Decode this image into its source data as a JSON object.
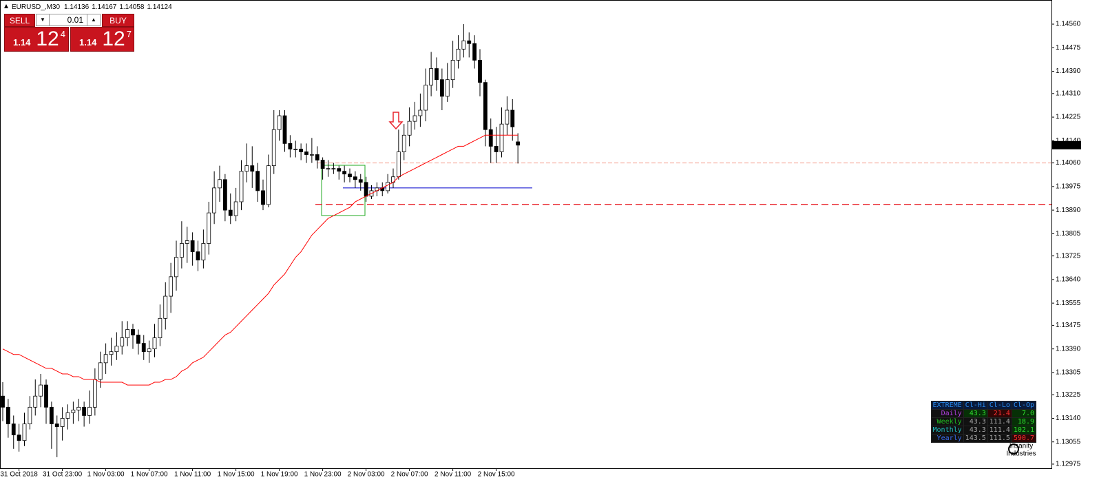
{
  "chart_data": {
    "type": "candlestick",
    "symbol": "EURUSD_,M30",
    "categories": [
      null,
      null,
      null,
      "31 Oct 2018",
      null,
      null,
      null,
      null,
      null,
      null,
      null,
      "31 Oct 23:00",
      null,
      null,
      null,
      null,
      null,
      null,
      null,
      "1 Nov 03:00",
      null,
      null,
      null,
      null,
      null,
      null,
      null,
      "1 Nov 07:00",
      null,
      null,
      null,
      null,
      null,
      null,
      null,
      "1 Nov 11:00",
      null,
      null,
      null,
      null,
      null,
      null,
      null,
      "1 Nov 15:00",
      null,
      null,
      null,
      null,
      null,
      null,
      null,
      "1 Nov 19:00",
      null,
      null,
      null,
      null,
      null,
      null,
      null,
      "1 Nov 23:00",
      null,
      null,
      null,
      null,
      null,
      null,
      null,
      "2 Nov 03:00",
      null,
      null,
      null,
      null,
      null,
      null,
      null,
      "2 Nov 07:00",
      null,
      null,
      null,
      null,
      null,
      null,
      null,
      "2 Nov 11:00",
      null,
      null,
      null,
      null,
      null,
      null,
      null,
      "2 Nov 15:00",
      null,
      null,
      null,
      null
    ],
    "open": [
      1.1322,
      1.1318,
      1.1312,
      1.1308,
      1.1306,
      1.1312,
      1.1318,
      1.1322,
      1.1326,
      1.1318,
      1.1312,
      1.1311,
      1.1314,
      1.1316,
      1.1317,
      1.1318,
      1.1315,
      1.1318,
      1.1328,
      1.1334,
      1.1337,
      1.1338,
      1.134,
      1.1343,
      1.1346,
      1.1344,
      1.1341,
      1.1338,
      1.1339,
      1.1343,
      1.135,
      1.1358,
      1.1365,
      1.1372,
      1.1377,
      1.1378,
      1.1374,
      1.1371,
      1.1377,
      1.1388,
      1.1397,
      1.14,
      1.1389,
      1.1387,
      1.1392,
      1.1403,
      1.1405,
      1.1403,
      1.1396,
      1.1391,
      1.1405,
      1.1418,
      1.1423,
      1.1413,
      1.1411,
      1.1411,
      1.141,
      1.1409,
      1.1409,
      1.1407,
      1.1404,
      1.1404,
      1.1404,
      1.1403,
      1.1402,
      1.1401,
      1.14,
      1.1399,
      1.1394,
      1.1396,
      1.1397,
      1.1396,
      1.1399,
      1.1401,
      1.141,
      1.1416,
      1.1421,
      1.1423,
      1.1425,
      1.1434,
      1.144,
      1.1436,
      1.143,
      1.1436,
      1.1443,
      1.1447,
      1.145,
      1.1449,
      1.1443,
      1.1435,
      1.1418,
      1.1412,
      1.141,
      1.142,
      1.1425,
      1.14136
    ],
    "high": [
      1.1327,
      1.1321,
      1.1315,
      1.1312,
      1.1316,
      1.1322,
      1.1328,
      1.133,
      1.1328,
      1.132,
      1.1315,
      1.1318,
      1.1319,
      1.132,
      1.1321,
      1.132,
      1.1324,
      1.1332,
      1.1338,
      1.1341,
      1.1343,
      1.1345,
      1.1349,
      1.1349,
      1.1348,
      1.1346,
      1.1344,
      1.1342,
      1.1348,
      1.1355,
      1.1363,
      1.137,
      1.1378,
      1.1385,
      1.1383,
      1.1381,
      1.1378,
      1.1382,
      1.1392,
      1.1403,
      1.1405,
      1.1402,
      1.1395,
      1.1397,
      1.1407,
      1.1413,
      1.1412,
      1.1406,
      1.14,
      1.1409,
      1.1425,
      1.1425,
      1.1425,
      1.1416,
      1.1414,
      1.1413,
      1.1413,
      1.1415,
      1.1412,
      1.1408,
      1.1407,
      1.1406,
      1.1405,
      1.1405,
      1.1404,
      1.1403,
      1.1402,
      1.1401,
      1.1398,
      1.1399,
      1.1399,
      1.1402,
      1.1404,
      1.1418,
      1.142,
      1.1426,
      1.1428,
      1.1431,
      1.144,
      1.1446,
      1.1444,
      1.144,
      1.1442,
      1.145,
      1.1452,
      1.1456,
      1.1453,
      1.1452,
      1.1447,
      1.1436,
      1.1422,
      1.1419,
      1.1426,
      1.143,
      1.1429,
      1.14167
    ],
    "low": [
      1.1313,
      1.1307,
      1.1303,
      1.1302,
      1.1304,
      1.131,
      1.1315,
      1.1318,
      1.1312,
      1.1303,
      1.13,
      1.1306,
      1.131,
      1.1312,
      1.1313,
      1.1311,
      1.1312,
      1.1315,
      1.1325,
      1.133,
      1.1333,
      1.1335,
      1.1337,
      1.134,
      1.1339,
      1.1337,
      1.1335,
      1.1334,
      1.1336,
      1.134,
      1.1346,
      1.1352,
      1.136,
      1.1368,
      1.137,
      1.1369,
      1.1367,
      1.1368,
      1.1373,
      1.1384,
      1.1392,
      1.1385,
      1.1384,
      1.1385,
      1.1389,
      1.1399,
      1.1397,
      1.1392,
      1.1389,
      1.139,
      1.1402,
      1.1414,
      1.141,
      1.1408,
      1.1408,
      1.1407,
      1.1406,
      1.1406,
      1.1404,
      1.14,
      1.1401,
      1.1402,
      1.14,
      1.1399,
      1.1399,
      1.1397,
      1.1396,
      1.1392,
      1.1393,
      1.1394,
      1.1394,
      1.1395,
      1.1397,
      1.14,
      1.1407,
      1.1412,
      1.1418,
      1.1419,
      1.1421,
      1.143,
      1.1432,
      1.1425,
      1.1428,
      1.1433,
      1.144,
      1.1444,
      1.1444,
      1.144,
      1.143,
      1.1412,
      1.1406,
      1.1406,
      1.1408,
      1.1416,
      1.1414,
      1.14058
    ],
    "close": [
      1.1318,
      1.1312,
      1.1308,
      1.1306,
      1.1312,
      1.1318,
      1.1322,
      1.1326,
      1.1318,
      1.1312,
      1.1311,
      1.1314,
      1.1316,
      1.1317,
      1.1318,
      1.1315,
      1.1318,
      1.1328,
      1.1334,
      1.1337,
      1.1338,
      1.134,
      1.1343,
      1.1346,
      1.1344,
      1.1341,
      1.1338,
      1.1339,
      1.1343,
      1.135,
      1.1358,
      1.1365,
      1.1372,
      1.1377,
      1.1378,
      1.1374,
      1.1371,
      1.1377,
      1.1388,
      1.1397,
      1.14,
      1.1389,
      1.1387,
      1.1392,
      1.1403,
      1.1405,
      1.1403,
      1.1396,
      1.1391,
      1.1405,
      1.1418,
      1.1423,
      1.1413,
      1.1411,
      1.1411,
      1.141,
      1.1409,
      1.1409,
      1.1407,
      1.1404,
      1.1404,
      1.1404,
      1.1403,
      1.1402,
      1.1401,
      1.14,
      1.1399,
      1.1394,
      1.1396,
      1.1397,
      1.1396,
      1.1399,
      1.1401,
      1.141,
      1.1416,
      1.1421,
      1.1423,
      1.1425,
      1.1434,
      1.144,
      1.1436,
      1.143,
      1.1436,
      1.1443,
      1.1447,
      1.145,
      1.1449,
      1.1443,
      1.1435,
      1.1418,
      1.1412,
      1.141,
      1.142,
      1.1425,
      1.1419,
      1.14124
    ],
    "ma": {
      "color": "#ff0000",
      "values": [
        1.1339,
        1.1338,
        1.1337,
        1.1337,
        1.1336,
        1.1335,
        1.1334,
        1.1333,
        1.1332,
        1.1332,
        1.1331,
        1.133,
        1.133,
        1.1329,
        1.1329,
        1.1328,
        1.1328,
        1.1328,
        1.1327,
        1.1327,
        1.1327,
        1.1327,
        1.1327,
        1.1326,
        1.1326,
        1.1326,
        1.1326,
        1.1326,
        1.1327,
        1.1327,
        1.1328,
        1.1328,
        1.1329,
        1.1331,
        1.1332,
        1.1334,
        1.1335,
        1.1336,
        1.1338,
        1.134,
        1.1342,
        1.1344,
        1.1345,
        1.1347,
        1.1349,
        1.1351,
        1.1353,
        1.1355,
        1.1357,
        1.1359,
        1.1362,
        1.1364,
        1.1366,
        1.1369,
        1.1372,
        1.1374,
        1.1377,
        1.138,
        1.1382,
        1.1384,
        1.1386,
        1.1387,
        1.1388,
        1.1389,
        1.139,
        1.1392,
        1.1393,
        1.1394,
        1.1395,
        1.1396,
        1.1397,
        1.1398,
        1.1399,
        1.1401,
        1.1402,
        1.1403,
        1.1404,
        1.1405,
        1.1406,
        1.1407,
        1.1408,
        1.1409,
        1.141,
        1.1411,
        1.1412,
        1.1412,
        1.1413,
        1.1414,
        1.1415,
        1.1416,
        1.1416,
        1.1416,
        1.1416,
        1.1416,
        1.1416,
        1.1416
      ]
    },
    "hlines": [
      {
        "value": 1.1406,
        "color": "#f4a090"
      },
      {
        "value": 1.1391,
        "color": "#e8242c"
      },
      {
        "value": 1.1397,
        "color": "#0000cc"
      }
    ],
    "ylim": [
      1.1296,
      1.14637
    ],
    "yticks": [
      {
        "value": 1.1456,
        "label": "1.14560"
      },
      1.14475,
      {
        "value": 1.1439,
        "label": "1.14390"
      },
      {
        "value": 1.1431,
        "label": "1.14310"
      },
      1.14225,
      {
        "value": 1.1414,
        "label": "1.14140"
      },
      {
        "value": 1.1406,
        "label": "1.14060"
      },
      1.13975,
      {
        "value": 1.1389,
        "label": "1.13890"
      },
      1.13805,
      1.13725,
      {
        "value": 1.1364,
        "label": "1.13640"
      },
      1.13555,
      1.13475,
      {
        "value": 1.1339,
        "label": "1.13390"
      },
      1.13305,
      1.13225,
      {
        "value": 1.1314,
        "label": "1.13140"
      },
      1.13055,
      1.12975
    ],
    "bull_color": "#ffffff",
    "bear_color": "#000000"
  },
  "trade_panel": {
    "sell": "SELL",
    "buy": "BUY",
    "lots": "0.01",
    "bid_small": "1.14",
    "bid_large": "12",
    "bid_frac": "4",
    "ask_small": "1.14",
    "ask_large": "12",
    "ask_frac": "7"
  },
  "stats_table": {
    "header": [
      "EXTREME",
      "Cl-Hi",
      "Cl-Lo",
      "Cl-Op"
    ],
    "rows": [
      [
        "Daily",
        "43.3",
        "21.4",
        "7.0"
      ],
      [
        "Weekly",
        "43.3",
        "111.4",
        "18.9"
      ],
      [
        "Monthly",
        "43.3",
        "111.4",
        "102.1"
      ],
      [
        "Yearly",
        "143.5",
        "111.5",
        "590.7"
      ]
    ]
  },
  "logo": {
    "line1": "Insanity",
    "line2": "Industries"
  }
}
